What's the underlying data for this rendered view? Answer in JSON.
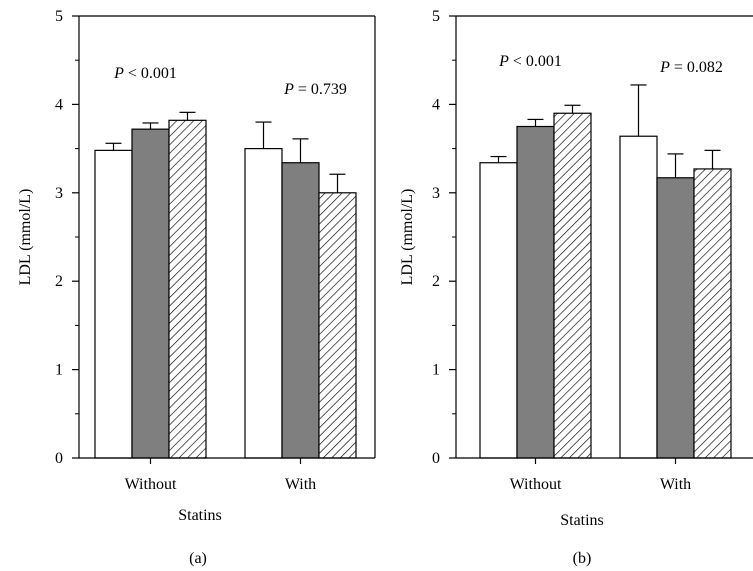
{
  "chart_data": [
    {
      "type": "bar",
      "panel_label": "(a)",
      "categories": [
        "Without",
        "With"
      ],
      "xlabel": "Statins",
      "ylabel": "LDL (mmol/L)",
      "ylim": [
        0,
        5
      ],
      "yticks": [
        "0",
        "1",
        "2",
        "3",
        "4",
        "5"
      ],
      "grid": false,
      "series": [
        {
          "fill": "white",
          "values": [
            3.48,
            3.5
          ],
          "errors": [
            0.08,
            0.3
          ]
        },
        {
          "fill": "gray",
          "values": [
            3.72,
            3.34
          ],
          "errors": [
            0.07,
            0.27
          ]
        },
        {
          "fill": "hatched",
          "values": [
            3.82,
            3.0
          ],
          "errors": [
            0.09,
            0.21
          ]
        }
      ],
      "annotations": [
        {
          "italic": "P",
          "text": " < 0.001",
          "category": "Without"
        },
        {
          "italic": "P",
          "text": " = 0.739",
          "category": "With"
        }
      ]
    },
    {
      "type": "bar",
      "panel_label": "(b)",
      "categories": [
        "Without",
        "With"
      ],
      "xlabel": "Statins",
      "ylabel": "LDL (mmol/L)",
      "ylim": [
        0,
        5
      ],
      "yticks": [
        "0",
        "1",
        "2",
        "3",
        "4",
        "5"
      ],
      "grid": false,
      "series": [
        {
          "fill": "white",
          "values": [
            3.34,
            3.64
          ],
          "errors": [
            0.07,
            0.58
          ]
        },
        {
          "fill": "gray",
          "values": [
            3.75,
            3.17
          ],
          "errors": [
            0.08,
            0.27
          ]
        },
        {
          "fill": "hatched",
          "values": [
            3.9,
            3.27
          ],
          "errors": [
            0.09,
            0.21
          ]
        }
      ],
      "annotations": [
        {
          "italic": "P",
          "text": " < 0.001",
          "category": "Without"
        },
        {
          "italic": "P",
          "text": " = 0.082",
          "category": "With"
        }
      ]
    }
  ],
  "colors": {
    "white_bar": "#ffffff",
    "gray_bar": "#7f7f7f",
    "outline": "#000000",
    "hatch": "#000000"
  }
}
